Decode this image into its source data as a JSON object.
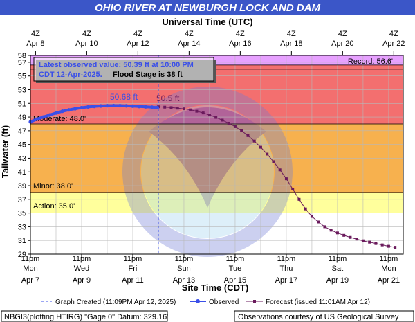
{
  "chart_data": {
    "type": "line",
    "title": "OHIO RIVER AT NEWBURGH LOCK AND DAM",
    "top_axis_title": "Universal Time (UTC)",
    "xlabel": "Site Time (CDT)",
    "ylabel": "Tailwater (ft)",
    "ylim": [
      29,
      58
    ],
    "y_ticks": [
      "29",
      "31",
      "33",
      "35",
      "37",
      "39",
      "41",
      "43",
      "45",
      "47",
      "49",
      "51",
      "53",
      "55",
      "57",
      "58"
    ],
    "top_ticks": [
      {
        "line1": "4Z",
        "line2": "Apr  8"
      },
      {
        "line1": "4Z",
        "line2": "Apr 10"
      },
      {
        "line1": "4Z",
        "line2": "Apr 12"
      },
      {
        "line1": "4Z",
        "line2": "Apr 14"
      },
      {
        "line1": "4Z",
        "line2": "Apr 16"
      },
      {
        "line1": "4Z",
        "line2": "Apr 18"
      },
      {
        "line1": "4Z",
        "line2": "Apr 20"
      },
      {
        "line1": "4Z",
        "line2": "Apr 22"
      }
    ],
    "bottom_ticks": [
      {
        "line1": "11pm",
        "line2": "Mon",
        "line3": "Apr 7"
      },
      {
        "line1": "11pm",
        "line2": "Wed",
        "line3": "Apr 9"
      },
      {
        "line1": "11pm",
        "line2": "Fri",
        "line3": "Apr 11"
      },
      {
        "line1": "11pm",
        "line2": "Sun",
        "line3": "Apr 13"
      },
      {
        "line1": "11pm",
        "line2": "Tue",
        "line3": "Apr 15"
      },
      {
        "line1": "11pm",
        "line2": "Thu",
        "line3": "Apr 17"
      },
      {
        "line1": "11pm",
        "line2": "Sat",
        "line3": "Apr 19"
      },
      {
        "line1": "11pm",
        "line2": "Mon",
        "line3": "Apr 21"
      }
    ],
    "stages": {
      "record": {
        "label": "Record: 56.6'",
        "value": 56.6,
        "color": "#e7a1ff"
      },
      "major": {
        "value": 56.0,
        "color": "#f36f6f"
      },
      "moderate": {
        "label": "Moderate: 48.0'",
        "value": 48.0,
        "color": "#f36f6f"
      },
      "minor": {
        "label": "Minor: 38.0'",
        "value": 38.0,
        "color": "#f7b14e"
      },
      "action": {
        "label": "Action: 35.0'",
        "value": 35.0,
        "color": "#ffff9c"
      }
    },
    "info_box": {
      "line1": "Latest observed value: 50.39 ft at 10:00 PM",
      "line2a": "CDT 12-Apr-2025.",
      "line2b": "Flood Stage is 38 ft"
    },
    "annotations": {
      "observed_crest": "50.68 ft",
      "forecast_crest": "50.5 ft"
    },
    "graph_created_day": 5.0,
    "observed": {
      "name": "Observed",
      "color": "#3a4fe8",
      "x": [
        0.0,
        0.25,
        0.5,
        0.75,
        1.0,
        1.25,
        1.5,
        1.75,
        2.0,
        2.25,
        2.5,
        2.75,
        3.0,
        3.25,
        3.5,
        3.75,
        4.0,
        4.25,
        4.5,
        4.75,
        4.96
      ],
      "y": [
        48.3,
        48.7,
        49.0,
        49.3,
        49.6,
        49.85,
        50.05,
        50.22,
        50.37,
        50.48,
        50.56,
        50.62,
        50.66,
        50.68,
        50.67,
        50.64,
        50.6,
        50.55,
        50.5,
        50.45,
        50.39
      ]
    },
    "forecast": {
      "name": "Forecast (issued 11:01AM Apr 12)",
      "color": "#6a1a5c",
      "x": [
        5.0,
        5.25,
        5.5,
        5.75,
        6.0,
        6.25,
        6.5,
        6.75,
        7.0,
        7.25,
        7.5,
        7.75,
        8.0,
        8.25,
        8.5,
        8.75,
        9.0,
        9.25,
        9.5,
        9.75,
        10.0,
        10.25,
        10.5,
        10.75,
        11.0,
        11.25,
        11.5,
        11.75,
        12.0,
        12.25,
        12.5,
        12.75,
        13.0,
        13.25,
        13.5,
        13.75,
        14.0,
        14.25
      ],
      "y": [
        50.5,
        50.45,
        50.38,
        50.3,
        50.2,
        50.05,
        49.85,
        49.6,
        49.3,
        48.95,
        48.55,
        48.1,
        47.6,
        47.0,
        46.3,
        45.5,
        44.6,
        43.6,
        42.5,
        41.3,
        40.0,
        38.5,
        37.0,
        35.6,
        34.5,
        33.7,
        33.0,
        32.5,
        32.1,
        31.75,
        31.45,
        31.2,
        30.95,
        30.75,
        30.55,
        30.35,
        30.15,
        30.0
      ]
    },
    "legend": {
      "graph_created": "Graph Created (11:09PM Apr 12, 2025)",
      "observed": "Observed",
      "forecast": "Forecast (issued 11:01AM Apr 12)"
    },
    "grid": true
  },
  "footer": {
    "left": "NBGI3(plotting HTIRG) \"Gage 0\" Datum: 329.16'",
    "right": "Observations courtesy of US Geological Survey"
  },
  "colors": {
    "title_bar": "#3b56c8",
    "plot_bg": "#ffffff",
    "grid": "#b8b8b8"
  }
}
